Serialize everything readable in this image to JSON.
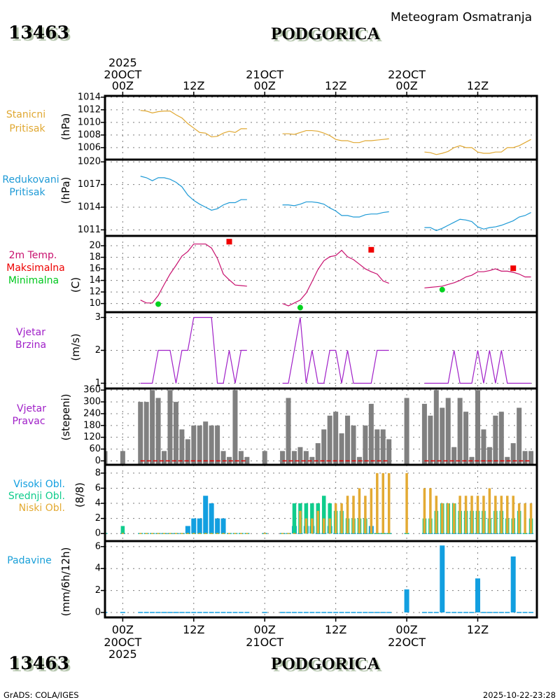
{
  "header": {
    "station_id": "13463",
    "station_name": "PODGORICA",
    "chart_title": "Meteogram Osmatranja"
  },
  "time_axis": {
    "xlim_hours": [
      -3,
      70
    ],
    "ticks": [
      {
        "hour": 0,
        "time": "00Z",
        "date": "20OCT",
        "year": "2025"
      },
      {
        "hour": 12,
        "time": "12Z"
      },
      {
        "hour": 24,
        "time": "00Z",
        "date": "21OCT"
      },
      {
        "hour": 36,
        "time": "12Z"
      },
      {
        "hour": 48,
        "time": "00Z",
        "date": "22OCT"
      },
      {
        "hour": 60,
        "time": "12Z"
      }
    ]
  },
  "chart_data": [
    {
      "id": "station-pressure",
      "type": "line",
      "title_lines": [
        {
          "text": "Stanicni",
          "color": "#e0a832"
        },
        {
          "text": "Pritisak",
          "color": "#e0a832"
        }
      ],
      "ylabel": "(hPa)",
      "ylim": [
        1004.1,
        1014.2
      ],
      "yticks": [
        1014,
        1012,
        1010,
        1008,
        1006
      ],
      "grid": true,
      "series": [
        {
          "id": "station-pressure",
          "name": "Stanicni Pritisak",
          "color": "#e0a832",
          "segments": [
            {
              "start_hour": 3,
              "values": [
                1011.9,
                1011.8,
                1011.5,
                1011.7,
                1011.8,
                1011.8,
                1011.2,
                1010.7,
                1009.8,
                1009.1,
                1008.4,
                1008.3,
                1007.7,
                1007.8,
                1008.3,
                1008.6,
                1008.4,
                1009.0,
                1009.0
              ]
            },
            {
              "start_hour": 27,
              "values": [
                1008.2,
                1008.2,
                1008.1,
                1008.4,
                1008.7,
                1008.7,
                1008.6,
                1008.3,
                1007.9,
                1007.3,
                1007.1,
                1007.1,
                1006.8,
                1006.8,
                1007.1,
                1007.1,
                1007.2,
                1007.3,
                1007.4
              ]
            },
            {
              "start_hour": 51,
              "values": [
                1005.3,
                1005.2,
                1004.9,
                1005.1,
                1005.4,
                1006.0,
                1006.3,
                1006.0,
                1006.0,
                1005.3,
                1005.1,
                1005.1,
                1005.3,
                1005.3,
                1006.0,
                1006.0,
                1006.3,
                1006.8,
                1007.3
              ]
            }
          ]
        }
      ]
    },
    {
      "id": "reduced-pressure",
      "type": "line",
      "title_lines": [
        {
          "text": "Redukovani",
          "color": "#1e9ad6"
        },
        {
          "text": "Pritisak",
          "color": "#1e9ad6"
        }
      ],
      "ylabel": "(hPa)",
      "ylim": [
        1010.2,
        1020.3
      ],
      "yticks": [
        1020,
        1017,
        1014,
        1011
      ],
      "grid": true,
      "series": [
        {
          "id": "reduced-pressure",
          "name": "Redukovani Pritisak",
          "color": "#1e9ad6",
          "segments": [
            {
              "start_hour": 3,
              "values": [
                1018.1,
                1017.9,
                1017.5,
                1017.9,
                1017.9,
                1017.7,
                1017.3,
                1016.7,
                1015.6,
                1014.9,
                1014.4,
                1014.0,
                1013.6,
                1013.8,
                1014.3,
                1014.6,
                1014.6,
                1015.0,
                1015.0
              ]
            },
            {
              "start_hour": 27,
              "values": [
                1014.3,
                1014.3,
                1014.2,
                1014.4,
                1014.7,
                1014.7,
                1014.6,
                1014.4,
                1013.9,
                1013.5,
                1012.9,
                1012.9,
                1012.7,
                1012.7,
                1013.0,
                1013.1,
                1013.1,
                1013.3,
                1013.4
              ]
            },
            {
              "start_hour": 51,
              "values": [
                1011.3,
                1011.3,
                1010.9,
                1011.2,
                1011.6,
                1012.0,
                1012.4,
                1012.3,
                1012.1,
                1011.4,
                1011.1,
                1011.3,
                1011.4,
                1011.6,
                1011.9,
                1012.2,
                1012.7,
                1012.9,
                1013.3
              ]
            }
          ]
        }
      ]
    },
    {
      "id": "temperature",
      "type": "line",
      "title_lines": [
        {
          "text": "2m Temp.",
          "color": "#c8106e"
        },
        {
          "text": "Maksimalna",
          "color": "#ee0000"
        },
        {
          "text": "Minimalna",
          "color": "#00c81e"
        }
      ],
      "ylabel": "(C)",
      "ylim": [
        8.5,
        21.7
      ],
      "yticks": [
        20,
        18,
        16,
        14,
        12,
        10
      ],
      "grid": true,
      "series": [
        {
          "id": "temperature-2m",
          "name": "2m Temp.",
          "color": "#c8106e",
          "segments": [
            {
              "start_hour": 3,
              "values": [
                10.6,
                10.1,
                10.1,
                11.4,
                13.3,
                15.1,
                16.6,
                18.2,
                19.0,
                20.3,
                20.3,
                20.3,
                19.6,
                17.8,
                15.1,
                14.1,
                13.2,
                13.1,
                13.0
              ]
            },
            {
              "start_hour": 27,
              "values": [
                10.0,
                9.6,
                10.1,
                10.6,
                11.8,
                13.8,
                15.9,
                17.4,
                18.1,
                18.3,
                19.2,
                18.1,
                17.6,
                16.8,
                16.0,
                15.5,
                15.1,
                13.9,
                13.5
              ]
            },
            {
              "start_hour": 51,
              "values": [
                12.7,
                12.8,
                12.9,
                13.0,
                13.3,
                13.6,
                14.0,
                14.6,
                14.9,
                15.5,
                15.5,
                15.7,
                16.0,
                15.6,
                15.6,
                15.4,
                15.1,
                14.6,
                14.6
              ]
            }
          ]
        }
      ],
      "markers": [
        {
          "id": "min-temperature",
          "name": "Minimalna",
          "shape": "circle",
          "color": "#00d21e",
          "points": [
            {
              "hour": 6,
              "value": 9.9
            },
            {
              "hour": 30,
              "value": 9.3
            },
            {
              "hour": 54,
              "value": 12.4
            }
          ]
        },
        {
          "id": "max-temperature",
          "name": "Maksimalna",
          "shape": "square",
          "color": "#f00000",
          "points": [
            {
              "hour": 18,
              "value": 20.7
            },
            {
              "hour": 42,
              "value": 19.3
            },
            {
              "hour": 66,
              "value": 16.1
            }
          ]
        }
      ]
    },
    {
      "id": "wind-speed",
      "type": "line",
      "title_lines": [
        {
          "text": "Vjetar",
          "color": "#a020c8"
        },
        {
          "text": "Brzina",
          "color": "#a020c8"
        }
      ],
      "ylabel": "(m/s)",
      "ylim": [
        0.84,
        3.16
      ],
      "yticks": [
        3,
        2,
        1
      ],
      "grid": true,
      "series": [
        {
          "id": "wind-speed",
          "name": "Vjetar Brzina",
          "color": "#a020c8",
          "segments": [
            {
              "start_hour": 3,
              "values": [
                1,
                1,
                1,
                2,
                2,
                2,
                1,
                2,
                2,
                3,
                3,
                3,
                3,
                1,
                1,
                2,
                1,
                2,
                2
              ]
            },
            {
              "start_hour": 27,
              "values": [
                1,
                1,
                2,
                3,
                1,
                2,
                1,
                1,
                2,
                2,
                1,
                2,
                1,
                1,
                1,
                1,
                2,
                2,
                2
              ]
            },
            {
              "start_hour": 51,
              "values": [
                1,
                1,
                1,
                1,
                1,
                2,
                1,
                1,
                1,
                2,
                1,
                2,
                1,
                2,
                1,
                1,
                1,
                1,
                1
              ]
            }
          ]
        }
      ]
    },
    {
      "id": "wind-direction",
      "type": "bar",
      "title_lines": [
        {
          "text": "Vjetar",
          "color": "#a020c8"
        },
        {
          "text": "Pravac",
          "color": "#a020c8"
        }
      ],
      "ylabel": "(stepeni)",
      "ylim": [
        -20,
        368
      ],
      "yticks": [
        360,
        300,
        240,
        180,
        120,
        60,
        0
      ],
      "grid": true,
      "hours": [
        -3,
        0,
        3,
        4,
        5,
        6,
        7,
        8,
        9,
        10,
        11,
        12,
        13,
        14,
        15,
        16,
        17,
        18,
        19,
        20,
        21,
        24,
        27,
        28,
        29,
        30,
        31,
        32,
        33,
        34,
        35,
        36,
        37,
        38,
        39,
        40,
        41,
        42,
        43,
        44,
        45,
        48,
        51,
        52,
        53,
        54,
        55,
        56,
        57,
        58,
        59,
        60,
        61,
        62,
        63,
        64,
        65,
        66,
        67,
        68,
        69
      ],
      "bars": [
        {
          "id": "wind-direction",
          "name": "Vjetar Pravac",
          "color": "#808080",
          "values": [
            50,
            50,
            300,
            300,
            360,
            320,
            50,
            360,
            300,
            160,
            110,
            180,
            180,
            200,
            180,
            180,
            50,
            20,
            360,
            50,
            20,
            50,
            50,
            320,
            50,
            70,
            50,
            20,
            90,
            160,
            230,
            250,
            140,
            230,
            180,
            20,
            180,
            290,
            160,
            160,
            110,
            320,
            290,
            230,
            360,
            270,
            320,
            70,
            320,
            250,
            20,
            360,
            160,
            70,
            230,
            250,
            20,
            90,
            270,
            50,
            50
          ]
        }
      ],
      "zero_line": {
        "color": "#e00000",
        "ranges": [
          [
            3,
            21
          ],
          [
            27,
            45
          ],
          [
            51,
            69
          ]
        ]
      }
    },
    {
      "id": "clouds",
      "type": "bar",
      "title_lines": [
        {
          "text": "Visoki Obl.",
          "color": "#129fe0"
        },
        {
          "text": "Srednji Obl.",
          "color": "#10cc8c"
        },
        {
          "text": "Niski Obl.",
          "color": "#e3aa33"
        }
      ],
      "ylabel": "(8/8)",
      "ylim": [
        -1,
        9.1
      ],
      "yticks": [
        8,
        6,
        4,
        2,
        0
      ],
      "grid": true,
      "hours": [
        -3,
        0,
        3,
        4,
        5,
        6,
        7,
        8,
        9,
        10,
        11,
        12,
        13,
        14,
        15,
        16,
        17,
        18,
        19,
        20,
        21,
        24,
        27,
        28,
        29,
        30,
        31,
        32,
        33,
        34,
        35,
        36,
        37,
        38,
        39,
        40,
        41,
        42,
        43,
        44,
        45,
        48,
        51,
        52,
        53,
        54,
        55,
        56,
        57,
        58,
        59,
        60,
        61,
        62,
        63,
        64,
        65,
        66,
        67,
        68,
        69
      ],
      "bars": [
        {
          "id": "high-clouds",
          "name": "Visoki Obl.",
          "color": "#129fe0",
          "values": [
            0,
            0,
            0,
            0,
            0,
            0,
            0,
            0,
            0,
            0,
            1,
            2,
            2,
            5,
            4,
            2,
            2,
            0,
            0,
            0,
            0,
            0,
            0,
            0,
            1,
            0,
            1,
            1,
            0,
            0,
            1,
            0,
            0,
            0,
            0,
            0,
            0,
            1,
            0,
            0,
            0,
            0,
            0,
            0,
            0,
            0,
            0,
            0,
            0,
            0,
            0,
            0,
            0,
            0,
            0,
            0,
            0,
            0,
            0,
            0,
            0
          ]
        },
        {
          "id": "mid-clouds",
          "name": "Srednji Obl.",
          "color": "#10cc8c",
          "values": [
            0,
            1,
            0,
            0,
            0,
            0,
            0,
            0,
            0,
            0,
            0,
            0,
            0,
            0,
            0,
            0,
            0,
            0,
            0,
            0,
            0,
            0,
            0,
            0,
            4,
            4,
            4,
            4,
            4,
            5,
            4,
            3,
            3,
            2,
            2,
            2,
            2,
            0,
            0,
            0,
            0,
            0,
            2,
            2,
            3,
            4,
            4,
            4,
            3,
            3,
            3,
            3,
            3,
            2,
            3,
            3,
            2,
            2,
            3,
            0,
            2
          ]
        },
        {
          "id": "low-clouds",
          "name": "Niski Obl.",
          "color": "#e3aa33",
          "values": [
            0,
            0,
            0,
            0,
            0,
            0,
            0,
            0,
            0,
            0,
            0,
            0,
            0,
            0,
            0,
            0,
            0,
            0,
            0,
            0,
            0,
            0,
            0,
            0,
            0,
            3,
            2,
            2,
            3,
            2,
            2,
            4,
            4,
            5,
            5,
            6,
            5,
            6,
            8,
            8,
            8,
            8,
            6,
            6,
            5,
            4,
            4,
            4,
            5,
            5,
            5,
            5,
            5,
            6,
            5,
            5,
            5,
            5,
            4,
            4,
            4
          ]
        }
      ]
    },
    {
      "id": "precipitation",
      "type": "bar",
      "title_lines": [
        {
          "text": "Padavine",
          "color": "#1aa0d8"
        }
      ],
      "ylabel": "(mm/6h/12h)",
      "ylim": [
        -0.45,
        6.5
      ],
      "yticks": [
        6,
        4,
        2,
        0
      ],
      "grid": true,
      "hours": [
        -3,
        0,
        3,
        4,
        5,
        6,
        7,
        8,
        9,
        10,
        11,
        12,
        13,
        14,
        15,
        16,
        17,
        18,
        19,
        20,
        21,
        24,
        27,
        28,
        29,
        30,
        31,
        32,
        33,
        34,
        35,
        36,
        37,
        38,
        39,
        40,
        41,
        42,
        43,
        44,
        45,
        48,
        51,
        52,
        53,
        54,
        55,
        56,
        57,
        58,
        59,
        60,
        61,
        62,
        63,
        64,
        65,
        66,
        67,
        68,
        69
      ],
      "bars": [
        {
          "id": "precipitation",
          "name": "Padavine",
          "color": "#129fe0",
          "values": [
            0,
            0,
            0,
            0,
            0,
            0,
            0,
            0,
            0,
            0,
            0,
            0,
            0,
            0,
            0,
            0,
            0,
            0,
            0,
            0,
            0,
            0,
            0,
            0,
            0,
            0,
            0,
            0,
            0,
            0,
            0,
            0,
            0,
            0,
            0,
            0,
            0,
            0,
            0,
            0,
            0,
            2.1,
            0,
            0,
            0,
            6.1,
            0,
            0,
            0,
            0,
            0,
            3.1,
            0,
            0,
            0,
            0,
            0,
            5.1,
            0,
            0,
            0
          ]
        }
      ]
    }
  ],
  "footer": {
    "station_id": "13463",
    "station_name": "PODGORICA",
    "credit": "GrADS: COLA/IGES",
    "timestamp": "2025-10-22-23:28"
  }
}
